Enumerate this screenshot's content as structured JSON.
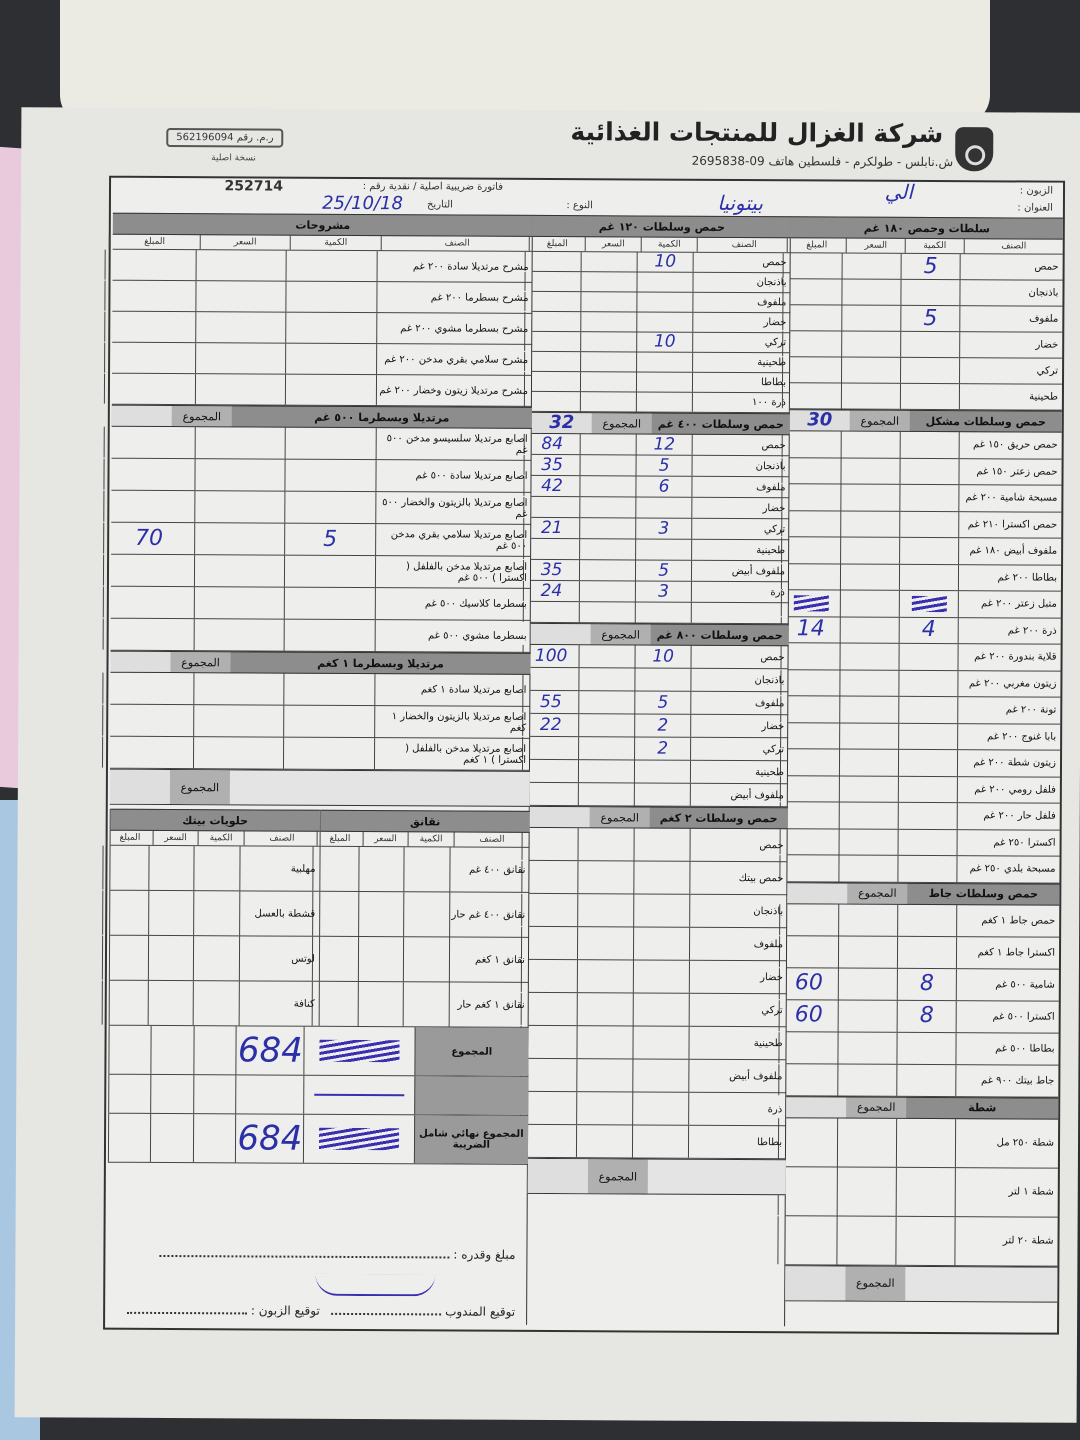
{
  "header": {
    "company": "شركة الغزال للمنتجات الغذائية",
    "address": "ش.نابلس - طولكرم - فلسطين   هاتف 09-2695838",
    "reg_label": "ر.م. رقم",
    "reg_number": "562196094",
    "copy_label": "نسخة اصلية",
    "invoice_label": "فاتورة ضريبية اصلية / نقدية   رقم :",
    "invoice_number": "252714",
    "date_label": "التاريخ",
    "date_value": "25/10/18",
    "type_label": "النوع :",
    "customer_label": "الزبون :",
    "customer_value": "الي",
    "address_label": "العنوان :",
    "address_value": "بيتونيا"
  },
  "columns_labels": [
    "الصنف",
    "الكمية",
    "السعر",
    "المبلغ"
  ],
  "total_label": "المجموع",
  "left": [
    {
      "id": "l1",
      "title": "مشروحات",
      "cols": true,
      "items": [
        {
          "name": "مشرح مرتديلا سادة ٢٠٠ غم"
        },
        {
          "name": "مشرح بسطرما ٢٠٠ غم"
        },
        {
          "name": "مشرح بسطرما مشوي ٢٠٠ غم"
        },
        {
          "name": "مشرح سلامي بقري مدخن ٢٠٠ غم"
        },
        {
          "name": "مشرح مرتديلا زيتون وخضار ٢٠٠ غم"
        }
      ]
    },
    {
      "id": "l2",
      "title": "مرتديلا وبسطرما ٥٠٠ غم",
      "total": "",
      "items": [
        {
          "name": "اصابع مرتديلا سلسيسو مدخن ٥٠٠ غم"
        },
        {
          "name": "اصابع مرتديلا سادة ٥٠٠ غم"
        },
        {
          "name": "اصابع مرتديلا بالزيتون والخضار ٥٠٠ غم"
        },
        {
          "name": "اصابع مرتديلا سلامي بقري مدخن ٥٠٠ غم",
          "qty": "5",
          "amount": "70"
        },
        {
          "name": "اصابع مرتديلا مدخن بالفلفل ( اكسترا ) ٥٠٠ غم"
        },
        {
          "name": "بسطرما كلاسيك ٥٠٠ غم"
        },
        {
          "name": "بسطرما مشوي ٥٠٠ غم"
        }
      ]
    },
    {
      "id": "l3",
      "title": "مرتديلا وبسطرما ١ كغم",
      "total": "",
      "footer": true,
      "items": [
        {
          "name": "اصابع مرتديلا سادة ١ كغم"
        },
        {
          "name": "اصابع مرتديلا بالزيتون والخضار ١ كغم"
        },
        {
          "name": "اصابع مرتديلا مدخن بالفلفل ( اكسترا ) ١ كغم"
        }
      ]
    }
  ],
  "sausages": {
    "title": "نقانق",
    "items": [
      {
        "name": "نقانق ٤٠٠ غم"
      },
      {
        "name": "نقانق ٤٠٠ غم حار"
      },
      {
        "name": "نقانق ١ كغم"
      },
      {
        "name": "نقانق ١ كغم حار"
      }
    ]
  },
  "sweets": {
    "title": "حلويات بيتك",
    "items": [
      {
        "name": "مهلبية"
      },
      {
        "name": "قشطة بالعسل"
      },
      {
        "name": "لوتس"
      },
      {
        "name": "كنافة"
      }
    ]
  },
  "totals": {
    "sum_label": "المجموع",
    "sum_value": "684",
    "final_label": "المجموع نهائي شامل الضريبة",
    "final_value": "684"
  },
  "middle": [
    {
      "id": "m1",
      "title": "حمص وسلطات ١٢٠ غم",
      "cols": true,
      "items": [
        {
          "name": "حمص",
          "qty": "10"
        },
        {
          "name": "باذنجان"
        },
        {
          "name": "ملفوف"
        },
        {
          "name": "خضار"
        },
        {
          "name": "تركي",
          "qty": "10"
        },
        {
          "name": "طحينية"
        },
        {
          "name": "بطاطا"
        },
        {
          "name": "ذرة ١٠٠"
        }
      ]
    },
    {
      "id": "m2",
      "title": "حمص وسلطات ٤٠٠ غم",
      "total": "32",
      "items": [
        {
          "name": "حمص",
          "qty": "12",
          "amount": "84"
        },
        {
          "name": "باذنجان",
          "qty": "5",
          "amount": "35"
        },
        {
          "name": "ملفوف",
          "qty": "6",
          "amount": "42"
        },
        {
          "name": "خضار"
        },
        {
          "name": "تركي",
          "qty": "3",
          "amount": "21"
        },
        {
          "name": "طحينية"
        },
        {
          "name": "ملفوف أبيض",
          "qty": "5",
          "amount": "35"
        },
        {
          "name": "ذرة",
          "qty": "3",
          "amount": "24"
        },
        {
          "name": ""
        }
      ]
    },
    {
      "id": "m3",
      "title": "حمص وسلطات ٨٠٠ غم",
      "total": "",
      "items": [
        {
          "name": "حمص",
          "qty": "10",
          "amount": "100"
        },
        {
          "name": "باذنجان"
        },
        {
          "name": "ملفوف",
          "qty": "5",
          "amount": "55"
        },
        {
          "name": "خضار",
          "qty": "2",
          "amount": "22"
        },
        {
          "name": "تركي",
          "qty": "2"
        },
        {
          "name": "طحينية"
        },
        {
          "name": "ملفوف أبيض"
        }
      ]
    },
    {
      "id": "m4",
      "title": "حمص وسلطات ٢ كغم",
      "total": "",
      "footer": true,
      "items": [
        {
          "name": "حمص"
        },
        {
          "name": "حمص بيتك"
        },
        {
          "name": "باذنجان"
        },
        {
          "name": "ملفوف"
        },
        {
          "name": "خضار"
        },
        {
          "name": "تركي"
        },
        {
          "name": "طحينية"
        },
        {
          "name": "ملفوف أبيض"
        },
        {
          "name": "ذرة"
        },
        {
          "name": "بطاطا"
        }
      ]
    }
  ],
  "right": [
    {
      "id": "r1",
      "title": "سلطات وحمص ١٨٠ غم",
      "cols": true,
      "items": [
        {
          "name": "حمص",
          "qty": "5"
        },
        {
          "name": "باذنجان"
        },
        {
          "name": "ملفوف",
          "qty": "5"
        },
        {
          "name": "خضار"
        },
        {
          "name": "تركي"
        },
        {
          "name": "طحينية"
        }
      ]
    },
    {
      "id": "r2",
      "title": "حمص وسلطات مشكل",
      "total": "30",
      "items": [
        {
          "name": "حمص حريق ١٥٠ غم"
        },
        {
          "name": "حمص زعتر ١٥٠ غم"
        },
        {
          "name": "مسبحة شامية ٢٠٠ غم"
        },
        {
          "name": "حمص اكسترا ٢١٠ غم"
        },
        {
          "name": "ملفوف أبيض ١٨٠ غم"
        },
        {
          "name": "بطاطا ٢٠٠ غم"
        },
        {
          "name": "متبل زعتر ٢٠٠ غم",
          "struck": true
        },
        {
          "name": "ذرة ٢٠٠ غم",
          "qty": "4",
          "amount": "14"
        },
        {
          "name": "قلاية بندورة ٢٠٠ غم"
        },
        {
          "name": "زيتون مغربي ٢٠٠ غم"
        },
        {
          "name": "تونة ٢٠٠ غم"
        },
        {
          "name": "بابا غنوج ٢٠٠ غم"
        },
        {
          "name": "زيتون شطة ٢٠٠ غم"
        },
        {
          "name": "فلفل رومي ٢٠٠ غم"
        },
        {
          "name": "فلفل حار ٢٠٠ غم"
        },
        {
          "name": "اكسترا ٢٥٠ غم"
        },
        {
          "name": "مسبحة بلدي ٢٥٠ غم"
        }
      ]
    },
    {
      "id": "r3",
      "title": "حمص وسلطات جاط",
      "total": "",
      "items": [
        {
          "name": "حمص جاط ١ كغم"
        },
        {
          "name": "اكسترا جاط ١ كغم"
        },
        {
          "name": "شامية ٥٠٠ غم",
          "qty": "8",
          "amount": "60"
        },
        {
          "name": "اكسترا ٥٠٠ غم",
          "qty": "8",
          "amount": "60"
        },
        {
          "name": "بطاطا ٥٠٠ غم"
        },
        {
          "name": "جاط بيتك ٩٠٠ غم"
        }
      ]
    },
    {
      "id": "r4",
      "title": "شطة",
      "total": "",
      "footer": true,
      "items": [
        {
          "name": "شطة ٢٥٠ مل"
        },
        {
          "name": "شطة ١ لتر"
        },
        {
          "name": "شطة ٢٠ لتر"
        }
      ]
    }
  ],
  "footer": {
    "amount_words_label": "مبلغ وقدره :",
    "rep_signature_label": "توقيع المندوب",
    "customer_signature_label": "توقيع الزبون :"
  }
}
